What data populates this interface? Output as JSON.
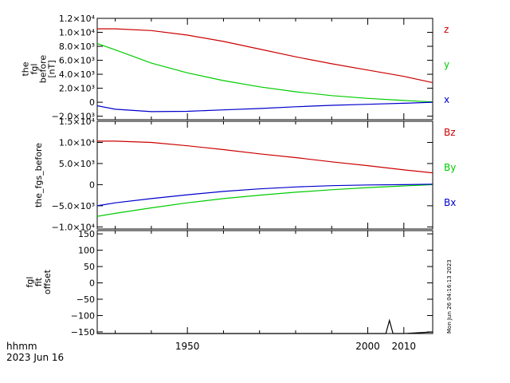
{
  "footer": {
    "time_unit": "hhmm",
    "date": "2023 Jun 16",
    "timestamp_vertical": "Mon Jun 26 04:16:13 2023"
  },
  "chart_data": [
    {
      "type": "line",
      "ylabel_lines": [
        "the",
        "fgl",
        "before",
        "[nT]"
      ],
      "ylim": [
        -2500,
        12000
      ],
      "yticks": [
        -2000,
        0,
        2000,
        4000,
        6000,
        8000,
        10000,
        12000
      ],
      "ytick_labels": [
        "−2.0×10³",
        "0",
        "2.0×10³",
        "4.0×10³",
        "6.0×10³",
        "8.0×10³",
        "1.0×10⁴",
        "1.2×10⁴"
      ],
      "x": [
        1925,
        1930,
        1940,
        1950,
        1960,
        1970,
        1980,
        1990,
        2000,
        2010,
        2018
      ],
      "series": [
        {
          "name": "z",
          "color": "#cc0000",
          "values": [
            10500,
            10500,
            10250,
            9600,
            8700,
            7600,
            6500,
            5500,
            4600,
            3700,
            2800
          ]
        },
        {
          "name": "y",
          "color": "#00cc00",
          "values": [
            8400,
            7500,
            5600,
            4200,
            3100,
            2200,
            1500,
            950,
            550,
            250,
            50
          ]
        },
        {
          "name": "x",
          "color": "#0000cc",
          "values": [
            -500,
            -1000,
            -1350,
            -1300,
            -1100,
            -900,
            -650,
            -450,
            -300,
            -150,
            0
          ]
        }
      ]
    },
    {
      "type": "line",
      "ylabel": "the_fgs_before",
      "ylim": [
        -10500,
        15000
      ],
      "yticks": [
        -10000,
        -5000,
        0,
        5000,
        10000,
        15000
      ],
      "ytick_labels": [
        "−1.0×10⁴",
        "−5.0×10³",
        "0",
        "5.0×10³",
        "1.0×10⁴",
        "1.5×10⁴"
      ],
      "x": [
        1925,
        1930,
        1940,
        1950,
        1960,
        1970,
        1980,
        1990,
        2000,
        2010,
        2018
      ],
      "series": [
        {
          "name": "Bz",
          "color": "#cc0000",
          "values": [
            10300,
            10300,
            10000,
            9200,
            8300,
            7300,
            6400,
            5400,
            4500,
            3500,
            2800
          ]
        },
        {
          "name": "By",
          "color": "#00cc00",
          "values": [
            -7500,
            -6800,
            -5500,
            -4300,
            -3300,
            -2500,
            -1800,
            -1200,
            -700,
            -300,
            0
          ]
        },
        {
          "name": "Bx",
          "color": "#0000cc",
          "values": [
            -5000,
            -4300,
            -3300,
            -2400,
            -1600,
            -1000,
            -550,
            -250,
            -80,
            0,
            100
          ]
        }
      ]
    },
    {
      "type": "line",
      "ylabel_lines": [
        "fgl",
        "fit",
        "offset"
      ],
      "ylim": [
        -155,
        160
      ],
      "yticks": [
        -150,
        -100,
        -50,
        0,
        50,
        100,
        150
      ],
      "ytick_labels": [
        "−150",
        "−100",
        "−50",
        "0",
        "50",
        "100",
        "150"
      ],
      "x": [
        1925,
        1950,
        1975,
        2000,
        2005,
        2006,
        2007,
        2010,
        2018
      ],
      "series": [
        {
          "name": "",
          "color": "#000000",
          "values": [
            -155,
            -155,
            -155,
            -155,
            -155,
            -115,
            -155,
            -155,
            -150
          ]
        }
      ]
    }
  ],
  "xaxis": {
    "xlim": [
      1925,
      2018
    ],
    "ticks": [
      1950,
      2000,
      2010
    ],
    "minor_step": 10,
    "tick_labels": [
      "1950",
      "2000",
      "2010"
    ]
  }
}
